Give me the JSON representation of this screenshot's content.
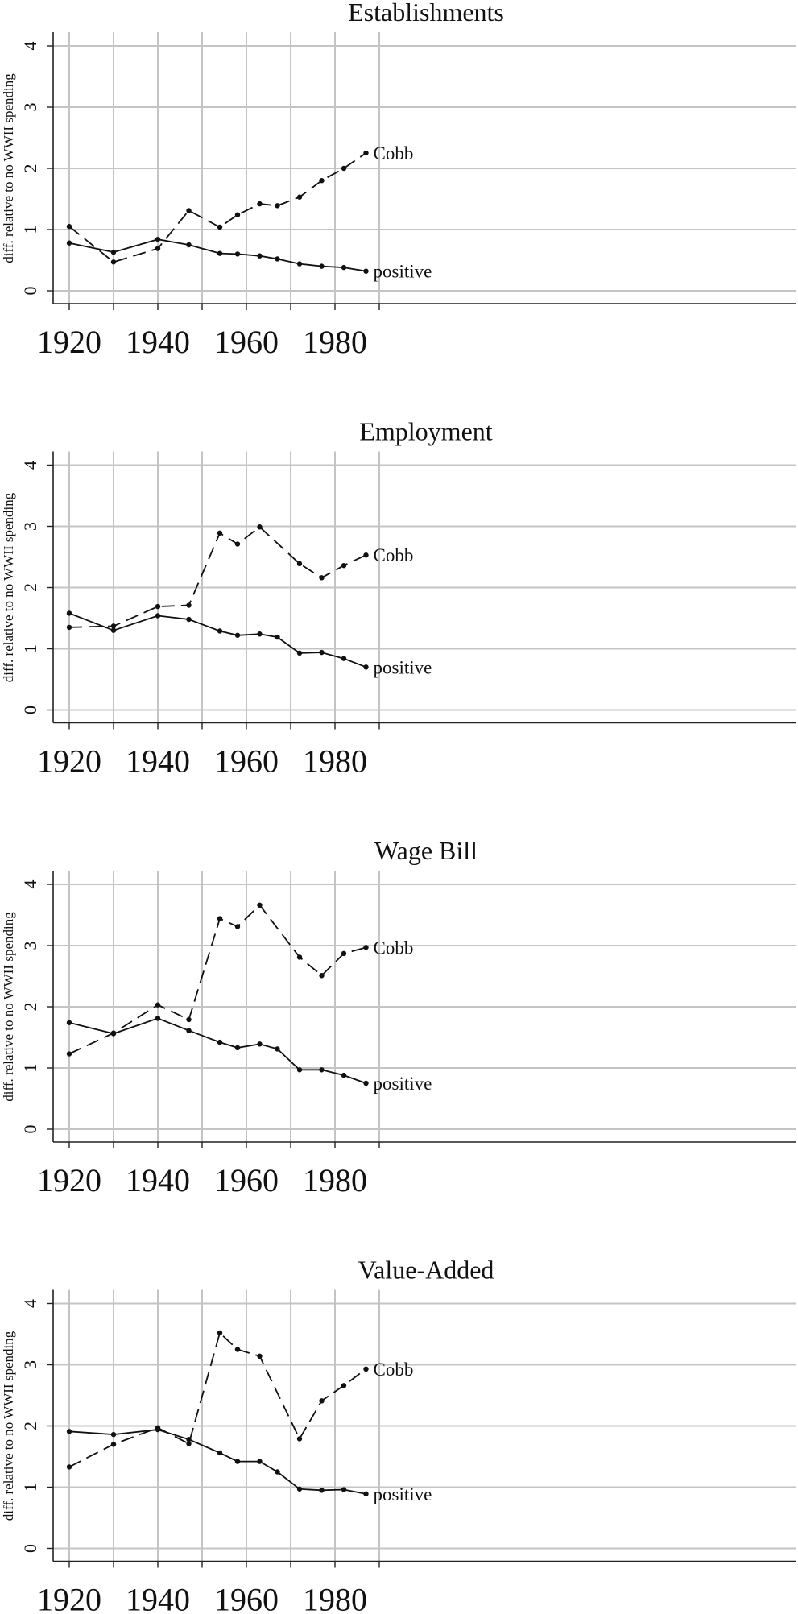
{
  "chart_data": [
    {
      "type": "line",
      "title": "Establishments",
      "ylabel": "diff. relative to no WWII spending",
      "x": [
        1920,
        1930,
        1940,
        1947,
        1954,
        1958,
        1963,
        1967,
        1972,
        1977,
        1982,
        1987
      ],
      "xticks": [
        1920,
        1940,
        1960,
        1980
      ],
      "yticks": [
        0,
        1,
        2,
        3,
        4
      ],
      "xlim": [
        1920,
        2000
      ],
      "ylim": [
        0,
        4
      ],
      "grid": true,
      "series": [
        {
          "name": "Cobb",
          "style": "dashed",
          "values": [
            1.05,
            0.47,
            0.69,
            1.31,
            1.04,
            1.24,
            1.42,
            1.39,
            1.53,
            1.8,
            2.0,
            2.25
          ]
        },
        {
          "name": "positive",
          "style": "solid",
          "values": [
            0.78,
            0.63,
            0.84,
            0.75,
            0.61,
            0.6,
            0.57,
            0.52,
            0.44,
            0.4,
            0.38,
            0.32
          ]
        }
      ]
    },
    {
      "type": "line",
      "title": "Employment",
      "ylabel": "diff. relative to no WWII spending",
      "x": [
        1920,
        1930,
        1940,
        1947,
        1954,
        1958,
        1963,
        1967,
        1972,
        1977,
        1982,
        1987
      ],
      "xticks": [
        1920,
        1940,
        1960,
        1980
      ],
      "yticks": [
        0,
        1,
        2,
        3,
        4
      ],
      "xlim": [
        1920,
        2000
      ],
      "ylim": [
        0,
        4
      ],
      "grid": true,
      "series": [
        {
          "name": "Cobb",
          "style": "dashed",
          "values": [
            1.35,
            1.37,
            1.69,
            1.71,
            2.89,
            2.71,
            2.99,
            null,
            2.39,
            2.16,
            2.36,
            2.53
          ]
        },
        {
          "name": "positive",
          "style": "solid",
          "values": [
            1.58,
            1.3,
            1.54,
            1.48,
            1.29,
            1.22,
            1.24,
            1.19,
            0.93,
            0.94,
            0.84,
            0.7
          ]
        }
      ]
    },
    {
      "type": "line",
      "title": "Wage Bill",
      "ylabel": "diff. relative to no WWII spending",
      "x": [
        1920,
        1930,
        1940,
        1947,
        1954,
        1958,
        1963,
        1967,
        1972,
        1977,
        1982,
        1987
      ],
      "xticks": [
        1920,
        1940,
        1960,
        1980
      ],
      "yticks": [
        0,
        1,
        2,
        3,
        4
      ],
      "xlim": [
        1920,
        2000
      ],
      "ylim": [
        0,
        4
      ],
      "grid": true,
      "series": [
        {
          "name": "Cobb",
          "style": "dashed",
          "values": [
            1.23,
            1.57,
            2.03,
            1.79,
            3.44,
            3.31,
            3.66,
            null,
            2.81,
            2.51,
            2.87,
            2.97
          ]
        },
        {
          "name": "positive",
          "style": "solid",
          "values": [
            1.74,
            1.56,
            1.81,
            1.61,
            1.42,
            1.33,
            1.39,
            1.31,
            0.97,
            0.97,
            0.88,
            0.75
          ]
        }
      ]
    },
    {
      "type": "line",
      "title": "Value-Added",
      "ylabel": "diff. relative to no WWII spending",
      "x": [
        1920,
        1930,
        1940,
        1947,
        1954,
        1958,
        1963,
        1967,
        1972,
        1977,
        1982,
        1987
      ],
      "xticks": [
        1920,
        1940,
        1960,
        1980
      ],
      "yticks": [
        0,
        1,
        2,
        3,
        4
      ],
      "xlim": [
        1920,
        2000
      ],
      "ylim": [
        0,
        4
      ],
      "grid": true,
      "series": [
        {
          "name": "Cobb",
          "style": "dashed",
          "values": [
            1.33,
            1.7,
            1.97,
            1.71,
            3.52,
            3.25,
            3.14,
            null,
            1.79,
            2.41,
            2.66,
            2.93
          ]
        },
        {
          "name": "positive",
          "style": "solid",
          "values": [
            1.91,
            1.86,
            1.94,
            1.78,
            1.56,
            1.42,
            1.42,
            1.25,
            0.97,
            0.95,
            0.96,
            0.89
          ]
        }
      ]
    }
  ]
}
